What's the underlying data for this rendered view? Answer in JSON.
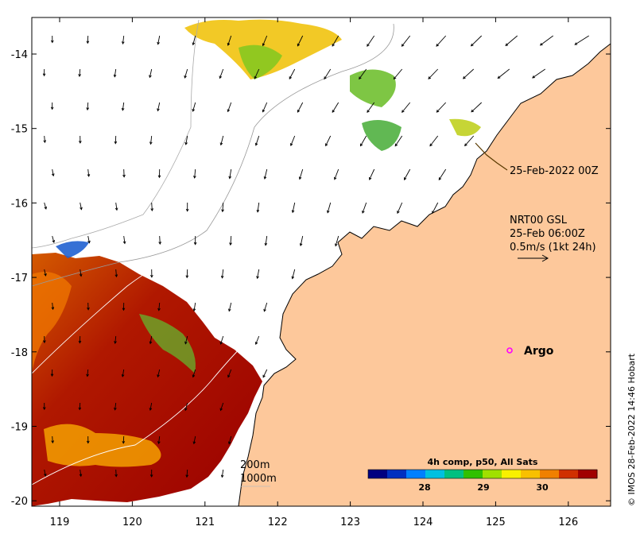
{
  "map": {
    "x_ticks": [
      "119",
      "120",
      "121",
      "122",
      "123",
      "124",
      "125",
      "126"
    ],
    "y_ticks": [
      "-14",
      "-15",
      "-16",
      "-17",
      "-18",
      "-19",
      "-20"
    ],
    "land_color": "#fdc89b",
    "sst_colors": [
      "#a00000",
      "#e87800",
      "#f8c800",
      "#90d020",
      "#20b040",
      "#40c0d0",
      "#2050d0"
    ]
  },
  "annotations": {
    "track_date": "25-Feb-2022 00Z",
    "current_product": "NRT00 GSL",
    "current_time": "25-Feb 06:00Z",
    "current_scale": "0.5m/s (1kt 24h)",
    "isobath_200": "200m",
    "isobath_1000": "1000m",
    "argo_label": "Argo",
    "argo_color": "#ff00ff"
  },
  "colorbar": {
    "title": "4h comp, p50, All Sats",
    "ticks": [
      "28",
      "29",
      "30"
    ],
    "colors": [
      "#000080",
      "#0030c0",
      "#0080ff",
      "#00c0e0",
      "#00c080",
      "#30c000",
      "#a0e000",
      "#f8f000",
      "#f8c000",
      "#f08000",
      "#d03000",
      "#a00000"
    ]
  },
  "credit": "© IMOS 28-Feb-2022 14:46 Hobart"
}
